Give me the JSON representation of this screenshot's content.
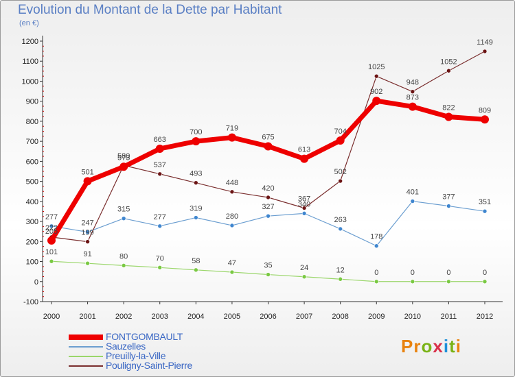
{
  "header": {
    "title": "Evolution du Montant de la Dette par Habitant",
    "subtitle": "(en €)"
  },
  "brand": {
    "text": "Proxiti",
    "colors": [
      "#e8820f",
      "#e8820f",
      "#7ab317",
      "#d9304a",
      "#1e90d8",
      "#7ab317",
      "#e8820f"
    ]
  },
  "chart_data": {
    "type": "line",
    "title": "Evolution du Montant de la Dette par Habitant",
    "subtitle": "(en €)",
    "xlabel": "",
    "ylabel": "",
    "x": [
      "2000",
      "2001",
      "2002",
      "2003",
      "2004",
      "2005",
      "2006",
      "2007",
      "2008",
      "2009",
      "2010",
      "2011",
      "2012"
    ],
    "yticks": [
      "-100",
      "0",
      "100",
      "200",
      "300",
      "400",
      "500",
      "600",
      "700",
      "800",
      "900",
      "1000",
      "1100",
      "1200"
    ],
    "ylim": [
      -100,
      1200
    ],
    "grid": false,
    "legend_position": "bottom-left",
    "series": [
      {
        "name": "FONTGOMBAULT",
        "color": "#ee0000",
        "values": [
          205,
          501,
          573,
          663,
          700,
          719,
          675,
          613,
          704,
          902,
          873,
          822,
          809
        ],
        "labels": [
          "205",
          "501",
          "573",
          "663",
          "700",
          "719",
          "675",
          "613",
          "704",
          "902",
          "873",
          "822",
          "809"
        ]
      },
      {
        "name": "Sauzelles",
        "color": "#6b9ed0",
        "values": [
          277,
          247,
          315,
          277,
          319,
          280,
          327,
          340,
          263,
          178,
          401,
          377,
          351
        ],
        "labels": [
          "277",
          "247",
          "315",
          "277",
          "319",
          "280",
          "327",
          "340",
          "263",
          "178",
          "401",
          "377",
          "351"
        ]
      },
      {
        "name": "Preuilly-la-Ville",
        "color": "#9ad66a",
        "values": [
          101,
          91,
          80,
          70,
          58,
          47,
          35,
          24,
          12,
          0,
          0,
          0,
          0
        ],
        "labels": [
          "101",
          "91",
          "80",
          "70",
          "58",
          "47",
          "35",
          "24",
          "12",
          "0",
          "0",
          "0",
          "0"
        ]
      },
      {
        "name": "Pouligny-Saint-Pierre",
        "color": "#7a2e2e",
        "values": [
          222,
          199,
          580,
          537,
          493,
          448,
          420,
          367,
          502,
          1025,
          948,
          1052,
          1149
        ],
        "labels": [
          "222",
          "199",
          "580",
          "537",
          "493",
          "448",
          "420",
          "367",
          "502",
          "1025",
          "948",
          "1052",
          "1149"
        ]
      }
    ]
  }
}
